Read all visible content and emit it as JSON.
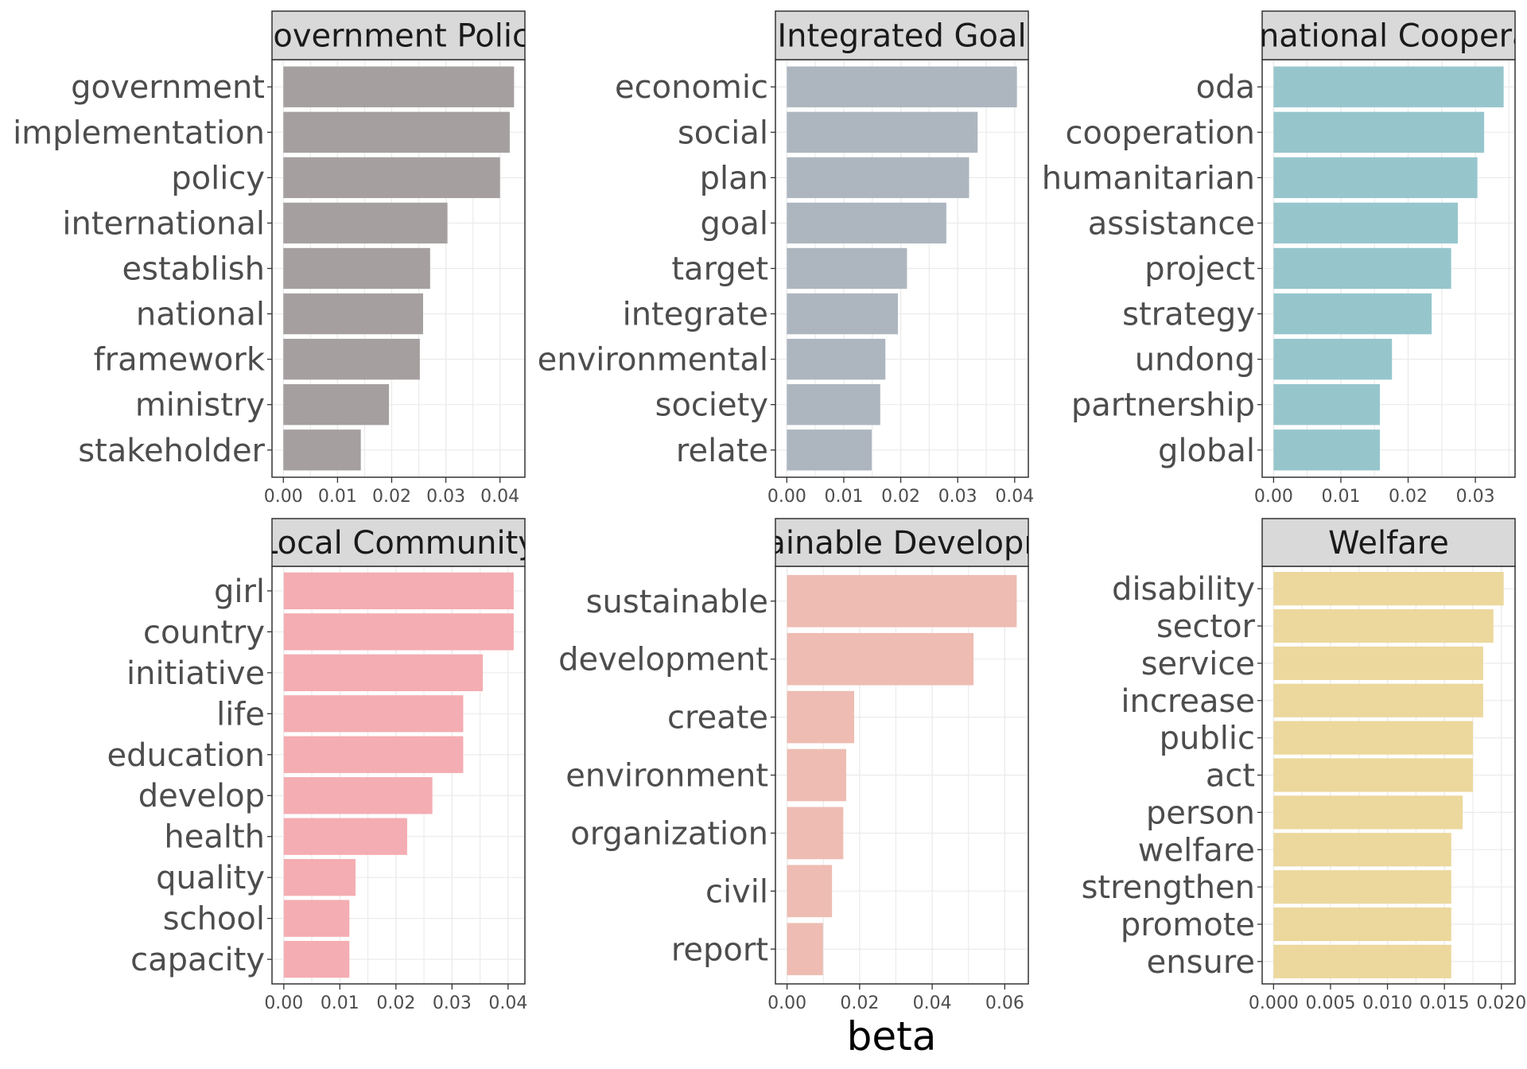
{
  "chart_data": [
    {
      "type": "bar",
      "orientation": "horizontal",
      "title": "Government Policy",
      "color": "#a5a09f",
      "categories": [
        "government",
        "implementation",
        "policy",
        "international",
        "establish",
        "national",
        "framework",
        "ministry",
        "stakeholder"
      ],
      "values": [
        0.0426,
        0.0418,
        0.04,
        0.0303,
        0.0271,
        0.0258,
        0.0252,
        0.0195,
        0.0143
      ],
      "xlim": [
        -0.0021,
        0.0446
      ],
      "xticks": [
        "0.00",
        "0.01",
        "0.02",
        "0.03",
        "0.04"
      ],
      "xtick_values": [
        0,
        0.01,
        0.02,
        0.03,
        0.04
      ],
      "grid": true
    },
    {
      "type": "bar",
      "orientation": "horizontal",
      "title": "Integrated Goal",
      "color": "#adb6bf",
      "categories": [
        "economic",
        "social",
        "plan",
        "goal",
        "target",
        "integrate",
        "environmental",
        "society",
        "relate"
      ],
      "values": [
        0.0404,
        0.0335,
        0.032,
        0.028,
        0.0211,
        0.0195,
        0.0173,
        0.0164,
        0.0149
      ],
      "xlim": [
        -0.002,
        0.0424
      ],
      "xticks": [
        "0.00",
        "0.01",
        "0.02",
        "0.03",
        "0.04"
      ],
      "xtick_values": [
        0,
        0.01,
        0.02,
        0.03,
        0.04
      ],
      "grid": true
    },
    {
      "type": "bar",
      "orientation": "horizontal",
      "title": "International Cooperation",
      "color": "#96c6cc",
      "categories": [
        "oda",
        "cooperation",
        "humanitarian",
        "assistance",
        "project",
        "strategy",
        "undong",
        "partnership",
        "global"
      ],
      "values": [
        0.0342,
        0.0313,
        0.0303,
        0.0274,
        0.0264,
        0.0235,
        0.0176,
        0.0158,
        0.0158
      ],
      "xlim": [
        -0.0017,
        0.0359
      ],
      "xticks": [
        "0.00",
        "0.01",
        "0.02",
        "0.03"
      ],
      "xtick_values": [
        0,
        0.01,
        0.02,
        0.03
      ],
      "grid": true
    },
    {
      "type": "bar",
      "orientation": "horizontal",
      "title": "Local Community",
      "color": "#f4adb2",
      "categories": [
        "girl",
        "country",
        "initiative",
        "life",
        "education",
        "develop",
        "health",
        "quality",
        "school",
        "capacity"
      ],
      "values": [
        0.041,
        0.041,
        0.0355,
        0.032,
        0.032,
        0.0265,
        0.022,
        0.0128,
        0.0117,
        0.0117
      ],
      "xlim": [
        -0.0021,
        0.043
      ],
      "xticks": [
        "0.00",
        "0.01",
        "0.02",
        "0.03",
        "0.04"
      ],
      "xtick_values": [
        0,
        0.01,
        0.02,
        0.03,
        0.04
      ],
      "grid": true
    },
    {
      "type": "bar",
      "orientation": "horizontal",
      "title": "Sustainable Development",
      "color": "#eebcb2",
      "categories": [
        "sustainable",
        "development",
        "create",
        "environment",
        "organization",
        "civil",
        "report"
      ],
      "values": [
        0.0633,
        0.0514,
        0.0185,
        0.0163,
        0.0155,
        0.0124,
        0.0099
      ],
      "xlim": [
        -0.0032,
        0.0665
      ],
      "xticks": [
        "0.00",
        "0.02",
        "0.04",
        "0.06"
      ],
      "xtick_values": [
        0,
        0.02,
        0.04,
        0.06
      ],
      "grid": true
    },
    {
      "type": "bar",
      "orientation": "horizontal",
      "title": "Welfare",
      "color": "#ecd89d",
      "categories": [
        "disability",
        "sector",
        "service",
        "increase",
        "public",
        "act",
        "person",
        "welfare",
        "strengthen",
        "promote",
        "ensure"
      ],
      "values": [
        0.0202,
        0.0193,
        0.0184,
        0.0184,
        0.0175,
        0.0175,
        0.0166,
        0.0156,
        0.0156,
        0.0156,
        0.0156
      ],
      "xlim": [
        -0.001,
        0.0212
      ],
      "xticks": [
        "0.000",
        "0.005",
        "0.010",
        "0.015",
        "0.020"
      ],
      "xtick_values": [
        0,
        0.005,
        0.01,
        0.015,
        0.02
      ],
      "grid": true
    }
  ],
  "xlabel": "beta",
  "colors": {
    "strip_fill": "#d9d9d9",
    "panel_border": "#333333",
    "gridline": "#ebebeb",
    "label_text": "#4d4d4d"
  }
}
